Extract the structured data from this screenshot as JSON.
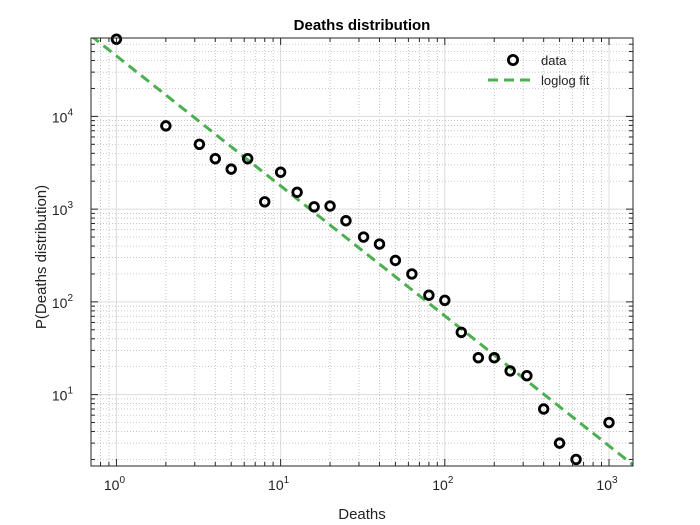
{
  "chart_data": {
    "type": "scatter",
    "title": "Deaths distribution",
    "xlabel": "Deaths",
    "ylabel": "P(Deaths distribution)",
    "xscale": "log",
    "yscale": "log",
    "xlim": [
      0.7,
      1400
    ],
    "ylim": [
      1.7,
      70000
    ],
    "grid": true,
    "minor_grid": true,
    "legend_position": "top-right",
    "x_ticks": [
      {
        "base": "10",
        "exp": "0",
        "value": 1
      },
      {
        "base": "10",
        "exp": "1",
        "value": 10
      },
      {
        "base": "10",
        "exp": "2",
        "value": 100
      },
      {
        "base": "10",
        "exp": "3",
        "value": 1000
      }
    ],
    "y_ticks": [
      {
        "base": "10",
        "exp": "1",
        "value": 10
      },
      {
        "base": "10",
        "exp": "2",
        "value": 100
      },
      {
        "base": "10",
        "exp": "3",
        "value": 1000
      },
      {
        "base": "10",
        "exp": "4",
        "value": 10000
      }
    ],
    "series": [
      {
        "name": "data",
        "marker": "circle",
        "color": "#000000",
        "points": [
          [
            1,
            68000
          ],
          [
            2,
            7900
          ],
          [
            3.2,
            5000
          ],
          [
            4,
            3500
          ],
          [
            5,
            2700
          ],
          [
            6.3,
            3500
          ],
          [
            8,
            1200
          ],
          [
            10,
            2500
          ],
          [
            12.6,
            1520
          ],
          [
            16,
            1060
          ],
          [
            20,
            1080
          ],
          [
            25,
            750
          ],
          [
            32,
            500
          ],
          [
            40,
            420
          ],
          [
            50,
            280
          ],
          [
            63,
            200
          ],
          [
            80,
            118
          ],
          [
            100,
            104
          ],
          [
            126,
            47
          ],
          [
            160,
            25
          ],
          [
            200,
            25
          ],
          [
            250,
            18
          ],
          [
            316,
            16
          ],
          [
            400,
            7
          ],
          [
            500,
            3
          ],
          [
            630,
            2
          ],
          [
            1000,
            5
          ]
        ]
      },
      {
        "name": "loglog fit",
        "style": "dashed",
        "color": "#4caf50",
        "line": [
          [
            0.7,
            74000
          ],
          [
            1400,
            1.75
          ]
        ]
      }
    ]
  }
}
